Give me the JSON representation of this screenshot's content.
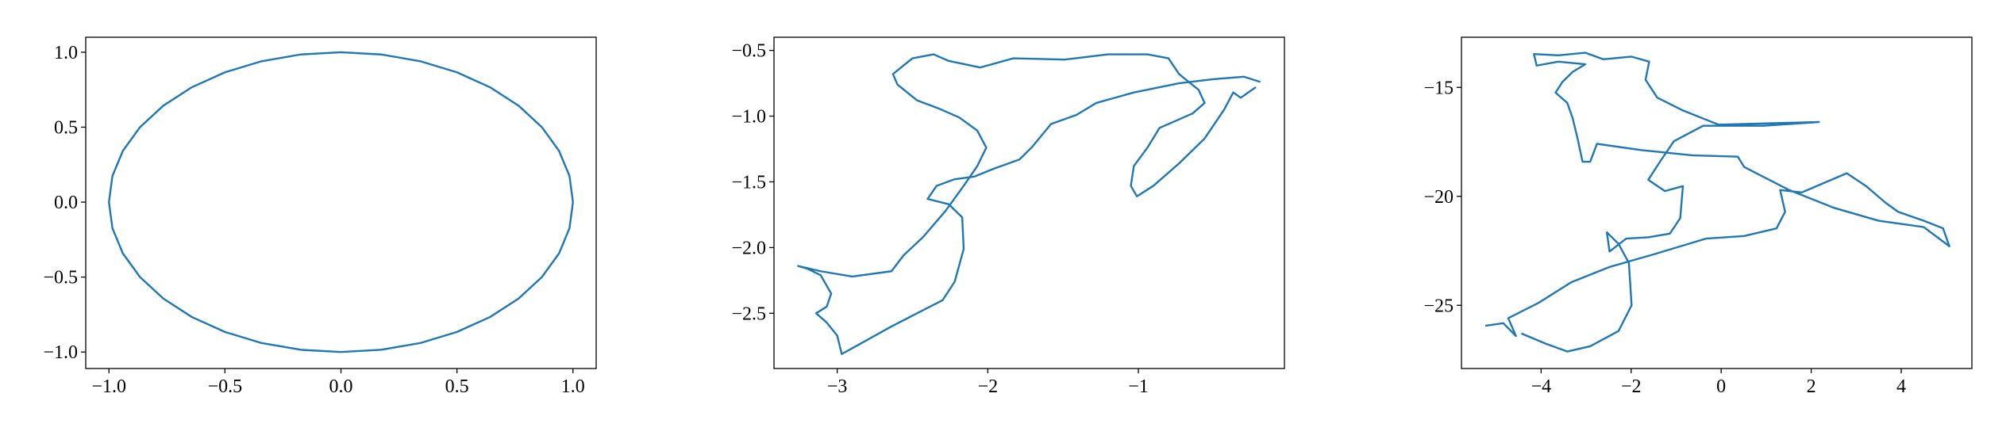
{
  "chart_data": [
    {
      "type": "line",
      "color": "#1f77b4",
      "x": [
        1,
        0.985,
        0.94,
        0.866,
        0.766,
        0.643,
        0.5,
        0.342,
        0.174,
        0,
        -0.174,
        -0.342,
        -0.5,
        -0.643,
        -0.766,
        -0.866,
        -0.94,
        -0.985,
        -1,
        -0.985,
        -0.94,
        -0.866,
        -0.766,
        -0.643,
        -0.5,
        -0.342,
        -0.174,
        0,
        0.174,
        0.342,
        0.5,
        0.643,
        0.766,
        0.866,
        0.94,
        0.985,
        1
      ],
      "values": [
        0,
        0.174,
        0.342,
        0.5,
        0.643,
        0.766,
        0.866,
        0.94,
        0.985,
        1,
        0.985,
        0.94,
        0.866,
        0.766,
        0.643,
        0.5,
        0.342,
        0.174,
        0,
        -0.174,
        -0.342,
        -0.5,
        -0.643,
        -0.766,
        -0.866,
        -0.94,
        -0.985,
        -1,
        -0.985,
        -0.94,
        -0.866,
        -0.766,
        -0.643,
        -0.5,
        -0.342,
        -0.174,
        0
      ],
      "xlim": [
        -1.1,
        1.1
      ],
      "ylim": [
        -1.11,
        1.1
      ],
      "xticks": [
        {
          "value": -1,
          "label": "−1.0"
        },
        {
          "value": -0.5,
          "label": "−0.5"
        },
        {
          "value": 0,
          "label": "0.0"
        },
        0.5,
        {
          "value": 1,
          "label": "1.0"
        }
      ],
      "yticks": [
        {
          "value": -1,
          "label": "−1.0"
        },
        {
          "value": -0.5,
          "label": "−0.5"
        },
        {
          "value": 0,
          "label": "0.0"
        },
        0.5,
        {
          "value": 1,
          "label": "1.0"
        }
      ]
    },
    {
      "type": "line",
      "color": "#1f77b4",
      "x": [
        -0.19,
        -0.3,
        -0.51,
        -0.73,
        -1.03,
        -1.28,
        -1.41,
        -1.58,
        -1.71,
        -1.79,
        -1.96,
        -2.09,
        -2.22,
        -2.34,
        -2.4,
        -2.26,
        -2.17,
        -2.16,
        -2.22,
        -2.3,
        -2.47,
        -2.64,
        -2.86,
        -2.97,
        -3.0,
        -3.07,
        -3.14,
        -3.07,
        -3.04,
        -3.11,
        -3.2,
        -3.26,
        -3.11,
        -2.9,
        -2.64,
        -2.56,
        -2.43,
        -2.28,
        -2.16,
        -2.07,
        -2.01,
        -2.07,
        -2.19,
        -2.33,
        -2.47,
        -2.6,
        -2.63,
        -2.5,
        -2.36,
        -2.26,
        -2.05,
        -1.83,
        -1.49,
        -1.2,
        -0.94,
        -0.8,
        -0.73,
        -0.6,
        -0.56,
        -0.64,
        -0.86,
        -0.94,
        -1.03,
        -1.05,
        -1.01,
        -0.9,
        -0.73,
        -0.56,
        -0.43,
        -0.37,
        -0.32,
        -0.22
      ],
      "values": [
        -0.74,
        -0.7,
        -0.72,
        -0.75,
        -0.82,
        -0.9,
        -0.99,
        -1.06,
        -1.24,
        -1.33,
        -1.4,
        -1.46,
        -1.48,
        -1.53,
        -1.63,
        -1.67,
        -1.77,
        -2.01,
        -2.26,
        -2.4,
        -2.5,
        -2.6,
        -2.74,
        -2.81,
        -2.67,
        -2.57,
        -2.5,
        -2.45,
        -2.35,
        -2.21,
        -2.16,
        -2.14,
        -2.18,
        -2.22,
        -2.18,
        -2.06,
        -1.92,
        -1.72,
        -1.53,
        -1.38,
        -1.24,
        -1.11,
        -1.01,
        -0.94,
        -0.88,
        -0.76,
        -0.68,
        -0.56,
        -0.53,
        -0.58,
        -0.63,
        -0.56,
        -0.57,
        -0.53,
        -0.53,
        -0.56,
        -0.68,
        -0.8,
        -0.9,
        -0.98,
        -1.09,
        -1.24,
        -1.38,
        -1.53,
        -1.61,
        -1.53,
        -1.36,
        -1.17,
        -0.95,
        -0.82,
        -0.86,
        -0.78
      ],
      "xlim": [
        -3.42,
        -0.03
      ],
      "ylim": [
        -2.92,
        -0.4
      ],
      "xticks": [
        {
          "value": -3,
          "label": "−3"
        },
        {
          "value": -2,
          "label": "−2"
        },
        {
          "value": -1,
          "label": "−1"
        }
      ],
      "yticks": [
        {
          "value": -0.5,
          "label": "−0.5"
        },
        {
          "value": -1,
          "label": "−1.0"
        },
        {
          "value": -1.5,
          "label": "−1.5"
        },
        {
          "value": -2,
          "label": "−2.0"
        },
        {
          "value": -2.5,
          "label": "−2.5"
        }
      ]
    },
    {
      "type": "line",
      "color": "#1f77b4",
      "x": [
        -5.24,
        -4.84,
        -4.56,
        -4.73,
        -4.05,
        -3.33,
        -2.48,
        -1.48,
        -0.34,
        0.51,
        1.23,
        1.42,
        1.31,
        1.79,
        2.79,
        3.22,
        3.65,
        3.93,
        4.5,
        4.93,
        5.07,
        4.5,
        3.5,
        2.51,
        1.51,
        0.51,
        0.37,
        -0.63,
        -1.77,
        -2.76,
        -2.91,
        -3.08,
        -3.19,
        -3.3,
        -3.42,
        -3.68,
        -3.53,
        -3.3,
        -3.02,
        -3.62,
        -4.1,
        -4.16,
        -3.62,
        -3.02,
        -2.62,
        -1.99,
        -1.6,
        -1.68,
        -1.42,
        -0.85,
        -0.06,
        1.08,
        2.17,
        0.94,
        -0.4,
        -1.05,
        -1.34,
        -1.62,
        -1.25,
        -0.85,
        -0.91,
        -1.14,
        -1.62,
        -2.11,
        -2.48,
        -2.54,
        -2.28,
        -2.05,
        -1.99,
        -2.28,
        -2.91,
        -3.42,
        -3.9,
        -4.44
      ],
      "values": [
        -25.94,
        -25.82,
        -26.41,
        -25.59,
        -24.88,
        -23.94,
        -23.24,
        -22.65,
        -21.94,
        -21.82,
        -21.47,
        -20.71,
        -19.71,
        -19.82,
        -18.94,
        -19.53,
        -20.29,
        -20.71,
        -21.12,
        -21.47,
        -22.29,
        -21.41,
        -21.12,
        -20.53,
        -19.71,
        -18.65,
        -18.18,
        -18.12,
        -17.88,
        -17.59,
        -18.41,
        -18.41,
        -17.35,
        -16.41,
        -15.71,
        -15.24,
        -14.76,
        -14.29,
        -13.94,
        -13.82,
        -14.0,
        -13.47,
        -13.53,
        -13.41,
        -13.71,
        -13.59,
        -13.82,
        -14.65,
        -15.47,
        -16.06,
        -16.71,
        -16.65,
        -16.59,
        -16.76,
        -16.76,
        -17.47,
        -18.35,
        -19.24,
        -19.76,
        -19.53,
        -21.0,
        -21.71,
        -21.88,
        -21.94,
        -22.53,
        -21.65,
        -22.18,
        -23.06,
        -25.0,
        -26.18,
        -26.88,
        -27.12,
        -26.76,
        -26.29
      ],
      "xlim": [
        -5.77,
        5.57
      ],
      "ylim": [
        -27.9,
        -12.7
      ],
      "xticks": [
        {
          "value": -4,
          "label": "−4"
        },
        {
          "value": -2,
          "label": "−2"
        },
        0,
        2,
        4
      ],
      "yticks": [
        {
          "value": -15,
          "label": "−15"
        },
        {
          "value": -20,
          "label": "−20"
        },
        {
          "value": -25,
          "label": "−25"
        }
      ]
    }
  ]
}
